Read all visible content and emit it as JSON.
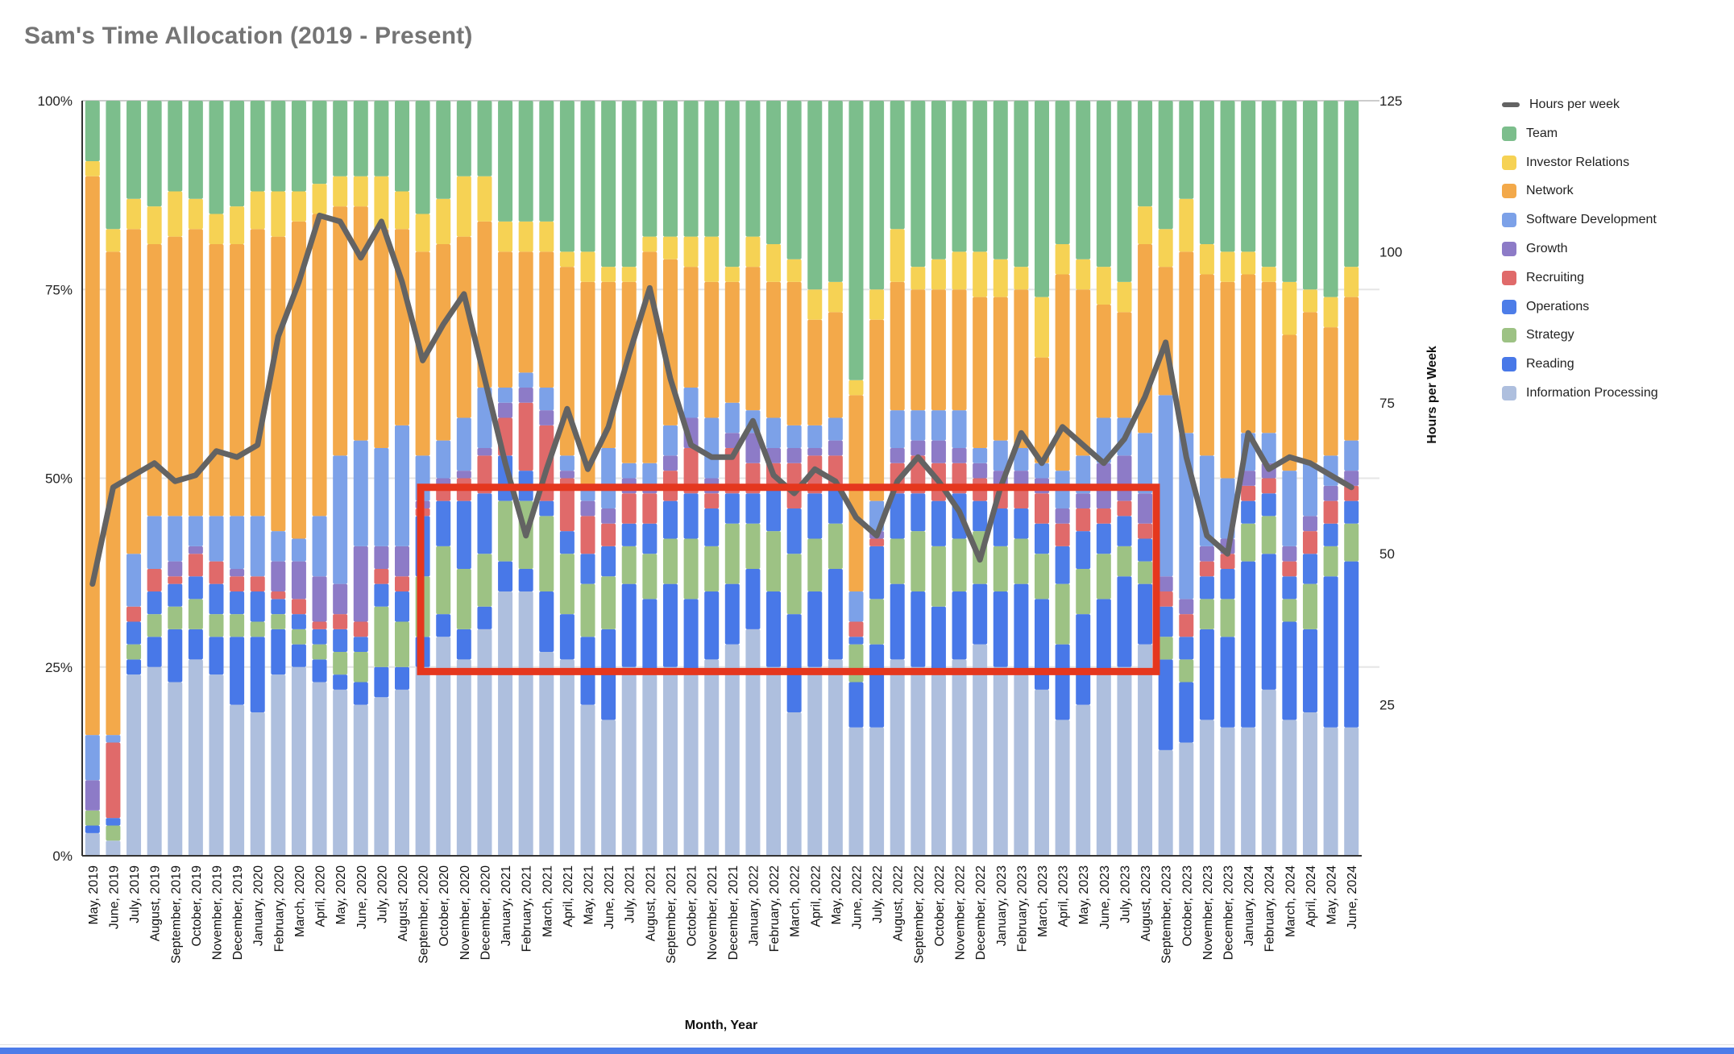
{
  "page": {
    "title": "Sam's Time Allocation (2019 - Present)"
  },
  "colors": {
    "title": "#757575",
    "gridline": "#e6e6e6",
    "gridline_top": "#cccccc",
    "axis_line": "#333333",
    "tick_text": "#222222",
    "annotation_red": "#e5371e",
    "line_gray": "#636363",
    "footer_strip_blue": "#4d7ce8"
  },
  "legend": {
    "items": [
      {
        "label": "Hours per week",
        "color": "#636363",
        "swatch": "line"
      },
      {
        "label": "Team",
        "color": "#7cbe8c",
        "swatch": "square"
      },
      {
        "label": "Investor Relations",
        "color": "#f6d254",
        "swatch": "square"
      },
      {
        "label": "Network",
        "color": "#f3a94a",
        "swatch": "square"
      },
      {
        "label": "Software Development",
        "color": "#7ca1e8",
        "swatch": "square"
      },
      {
        "label": "Growth",
        "color": "#8d7bc7",
        "swatch": "square"
      },
      {
        "label": "Recruiting",
        "color": "#e06a6a",
        "swatch": "square"
      },
      {
        "label": "Operations",
        "color": "#4d7de8",
        "swatch": "square"
      },
      {
        "label": "Strategy",
        "color": "#9dc284",
        "swatch": "square"
      },
      {
        "label": "Reading",
        "color": "#4878e8",
        "swatch": "square"
      },
      {
        "label": "Information Processing",
        "color": "#aebfde",
        "swatch": "square"
      }
    ]
  },
  "chart_data": {
    "type": "bar",
    "subtype": "stacked-percent-with-line-overlay",
    "title": "Sam's Time Allocation (2019 - Present)",
    "xlabel": "Month, Year",
    "ylabel": "",
    "y2label": "Hours per Week",
    "left_axis": {
      "ticks": [
        "0%",
        "25%",
        "50%",
        "75%",
        "100%"
      ],
      "values": [
        0,
        25,
        50,
        75,
        100
      ],
      "ylim": [
        0,
        100
      ]
    },
    "right_axis": {
      "ticks": [
        "25",
        "50",
        "75",
        "100",
        "125"
      ],
      "values": [
        25,
        50,
        75,
        100,
        125
      ],
      "ylim": [
        0,
        125
      ]
    },
    "grid": "horizontal",
    "legend_position": "right",
    "stack_order": "bottom to top as listed in series",
    "categories": [
      "May, 2019",
      "June, 2019",
      "July, 2019",
      "August, 2019",
      "September, 2019",
      "October, 2019",
      "November, 2019",
      "December, 2019",
      "January, 2020",
      "February, 2020",
      "March, 2020",
      "April, 2020",
      "May, 2020",
      "June, 2020",
      "July, 2020",
      "August, 2020",
      "September, 2020",
      "October, 2020",
      "November, 2020",
      "December, 2020",
      "January, 2021",
      "February, 2021",
      "March, 2021",
      "April, 2021",
      "May, 2021",
      "June, 2021",
      "July, 2021",
      "August, 2021",
      "September, 2021",
      "October, 2021",
      "November, 2021",
      "December, 2021",
      "January, 2022",
      "February, 2022",
      "March, 2022",
      "April, 2022",
      "May, 2022",
      "June, 2022",
      "July, 2022",
      "August, 2022",
      "September, 2022",
      "October, 2022",
      "November, 2022",
      "December, 2022",
      "January, 2023",
      "February, 2023",
      "March, 2023",
      "April, 2023",
      "May, 2023",
      "June, 2023",
      "July, 2023",
      "August, 2023",
      "September, 2023",
      "October, 2023",
      "November, 2023",
      "December, 2023",
      "January, 2024",
      "February, 2024",
      "March, 2024",
      "April, 2024",
      "May, 2024",
      "June, 2024"
    ],
    "series": [
      {
        "name": "Information Processing",
        "color": "#aebfde",
        "unit": "%",
        "values": [
          3,
          2,
          24,
          25,
          23,
          26,
          24,
          20,
          19,
          24,
          25,
          23,
          22,
          20,
          21,
          22,
          25,
          29,
          26,
          30,
          35,
          35,
          27,
          26,
          20,
          18,
          25,
          24,
          25,
          24,
          26,
          28,
          30,
          25,
          19,
          25,
          26,
          17,
          17,
          26,
          25,
          24,
          26,
          28,
          25,
          24,
          22,
          18,
          20,
          24,
          25,
          28,
          14,
          15,
          18,
          17,
          17,
          22,
          18,
          19,
          17,
          17
        ]
      },
      {
        "name": "Reading",
        "color": "#4878e8",
        "unit": "%",
        "values": [
          1,
          0,
          2,
          4,
          7,
          4,
          5,
          9,
          10,
          6,
          3,
          3,
          2,
          3,
          4,
          3,
          4,
          3,
          4,
          3,
          4,
          3,
          8,
          6,
          9,
          12,
          11,
          10,
          11,
          10,
          9,
          8,
          8,
          10,
          13,
          10,
          12,
          6,
          11,
          10,
          10,
          9,
          9,
          8,
          10,
          12,
          12,
          10,
          12,
          10,
          12,
          8,
          12,
          8,
          12,
          12,
          22,
          18,
          13,
          11,
          20,
          22
        ]
      },
      {
        "name": "Strategy",
        "color": "#9dc284",
        "unit": "%",
        "values": [
          2,
          2,
          2,
          3,
          3,
          4,
          3,
          3,
          2,
          2,
          2,
          2,
          3,
          4,
          8,
          6,
          8,
          9,
          8,
          7,
          8,
          9,
          10,
          8,
          7,
          7,
          5,
          6,
          6,
          8,
          6,
          8,
          6,
          8,
          8,
          7,
          6,
          5,
          6,
          6,
          8,
          8,
          7,
          7,
          6,
          6,
          6,
          8,
          6,
          6,
          4,
          3,
          3,
          3,
          4,
          5,
          5,
          5,
          3,
          6,
          4,
          5
        ]
      },
      {
        "name": "Operations",
        "color": "#4d7de8",
        "unit": "%",
        "values": [
          0,
          1,
          3,
          3,
          3,
          3,
          4,
          3,
          4,
          2,
          2,
          2,
          3,
          2,
          3,
          4,
          8,
          6,
          9,
          8,
          6,
          4,
          2,
          3,
          4,
          4,
          3,
          4,
          5,
          6,
          5,
          4,
          4,
          6,
          6,
          6,
          5,
          1,
          7,
          6,
          5,
          6,
          6,
          4,
          5,
          4,
          4,
          5,
          5,
          4,
          4,
          3,
          4,
          3,
          3,
          4,
          3,
          3,
          3,
          4,
          3,
          3
        ]
      },
      {
        "name": "Recruiting",
        "color": "#e06a6a",
        "unit": "%",
        "values": [
          0,
          10,
          2,
          3,
          1,
          3,
          3,
          2,
          2,
          1,
          2,
          1,
          2,
          2,
          2,
          2,
          1,
          2,
          3,
          5,
          5,
          9,
          10,
          7,
          5,
          3,
          4,
          4,
          4,
          6,
          2,
          6,
          4,
          3,
          6,
          5,
          4,
          2,
          1,
          4,
          5,
          5,
          4,
          3,
          3,
          3,
          4,
          3,
          3,
          2,
          2,
          2,
          2,
          3,
          2,
          2,
          2,
          2,
          2,
          3,
          3,
          2
        ]
      },
      {
        "name": "Growth",
        "color": "#8d7bc7",
        "unit": "%",
        "values": [
          4,
          0,
          0,
          0,
          2,
          1,
          0,
          1,
          0,
          4,
          5,
          6,
          4,
          10,
          3,
          4,
          1,
          1,
          1,
          1,
          2,
          2,
          2,
          1,
          2,
          2,
          2,
          1,
          2,
          4,
          2,
          2,
          4,
          2,
          2,
          1,
          2,
          0,
          1,
          2,
          2,
          3,
          2,
          2,
          2,
          2,
          2,
          2,
          2,
          6,
          6,
          4,
          2,
          2,
          2,
          2,
          2,
          2,
          2,
          2,
          2,
          2
        ]
      },
      {
        "name": "Software Development",
        "color": "#7ca1e8",
        "unit": "%",
        "values": [
          6,
          1,
          7,
          7,
          6,
          4,
          6,
          7,
          8,
          4,
          3,
          8,
          17,
          14,
          13,
          16,
          6,
          5,
          7,
          8,
          2,
          2,
          3,
          2,
          2,
          8,
          2,
          3,
          4,
          4,
          8,
          4,
          3,
          4,
          3,
          3,
          3,
          4,
          4,
          5,
          4,
          4,
          5,
          2,
          4,
          3,
          2,
          5,
          5,
          6,
          5,
          8,
          24,
          22,
          12,
          8,
          5,
          4,
          10,
          7,
          4,
          4
        ]
      },
      {
        "name": "Network",
        "color": "#f3a94a",
        "unit": "%",
        "values": [
          74,
          64,
          43,
          36,
          37,
          38,
          36,
          36,
          38,
          39,
          42,
          40,
          33,
          31,
          29,
          26,
          27,
          26,
          24,
          22,
          18,
          16,
          18,
          25,
          27,
          22,
          24,
          28,
          22,
          16,
          18,
          16,
          19,
          18,
          19,
          14,
          14,
          26,
          24,
          17,
          16,
          16,
          16,
          20,
          19,
          21,
          14,
          26,
          22,
          15,
          14,
          25,
          17,
          24,
          24,
          26,
          21,
          20,
          18,
          20,
          17,
          19
        ]
      },
      {
        "name": "Investor Relations",
        "color": "#f6d254",
        "unit": "%",
        "values": [
          2,
          3,
          4,
          5,
          6,
          4,
          4,
          5,
          5,
          6,
          4,
          4,
          4,
          4,
          7,
          5,
          5,
          6,
          8,
          6,
          4,
          4,
          4,
          2,
          4,
          2,
          2,
          2,
          3,
          4,
          6,
          2,
          4,
          5,
          3,
          4,
          4,
          2,
          4,
          7,
          3,
          4,
          5,
          6,
          5,
          3,
          8,
          4,
          4,
          5,
          4,
          5,
          5,
          7,
          4,
          4,
          3,
          2,
          7,
          3,
          4,
          4
        ]
      },
      {
        "name": "Team",
        "color": "#7cbe8c",
        "unit": "%",
        "values": [
          8,
          17,
          13,
          14,
          12,
          13,
          15,
          14,
          12,
          12,
          12,
          11,
          10,
          10,
          10,
          12,
          15,
          13,
          10,
          10,
          16,
          16,
          16,
          20,
          20,
          22,
          22,
          18,
          18,
          18,
          18,
          22,
          18,
          19,
          21,
          25,
          24,
          37,
          25,
          17,
          22,
          21,
          20,
          20,
          21,
          22,
          26,
          19,
          21,
          22,
          24,
          14,
          17,
          13,
          19,
          20,
          20,
          22,
          24,
          25,
          26,
          22
        ]
      }
    ],
    "line_series": {
      "name": "Hours per week",
      "color": "#636363",
      "axis": "right",
      "unit": "hours",
      "values": [
        45,
        61,
        63,
        65,
        62,
        63,
        67,
        66,
        68,
        86,
        95,
        106,
        105,
        99,
        105,
        95,
        82,
        88,
        93,
        79,
        65,
        53,
        64,
        74,
        64,
        71,
        83,
        94,
        79,
        68,
        66,
        66,
        72,
        63,
        60,
        64,
        62,
        56,
        53,
        62,
        66,
        62,
        57,
        49,
        61,
        70,
        65,
        71,
        68,
        65,
        69,
        76,
        85,
        66,
        53,
        50,
        70,
        64,
        66,
        65,
        63,
        61
      ]
    },
    "annotation": {
      "type": "rectangle",
      "color": "#e5371e",
      "stroke_width": 9,
      "x_from_category": "September, 2020",
      "x_to_category": "August, 2023",
      "x_from_frac": 0.2645,
      "x_to_frac": 0.8394,
      "top_percent": 48.8,
      "bottom_percent": 24.4
    }
  }
}
